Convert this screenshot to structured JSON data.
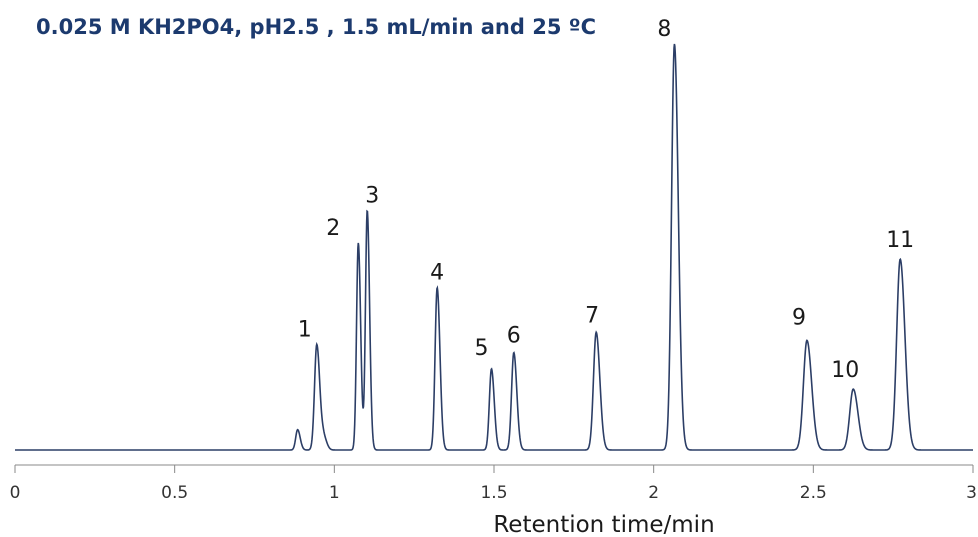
{
  "chart_data": {
    "type": "line",
    "title": "0.025 M KH2PO4, pH2.5 , 1.5 mL/min and 25 ºC",
    "xlabel": "Retention time/min",
    "ylabel": "",
    "xlim": [
      0,
      3
    ],
    "ylim": [
      0,
      100
    ],
    "x_ticks": [
      0,
      0.5,
      1,
      1.5,
      2,
      2.5,
      3
    ],
    "x_tick_labels": [
      "0",
      "0.5",
      "1",
      "1.5",
      "2",
      "2.5",
      "3"
    ],
    "grid": false,
    "legend": "none",
    "line_color": "#2c3e66",
    "title_color": "#1c3a6e",
    "series": [
      {
        "peaks": [
          {
            "label": "",
            "rt": 0.885,
            "height": 5,
            "width": 0.006
          },
          {
            "label": "1",
            "rt": 0.945,
            "height": 26,
            "width": 0.007
          },
          {
            "label": "",
            "rt": 0.967,
            "height": 3,
            "width": 0.007
          },
          {
            "label": "2",
            "rt": 1.075,
            "height": 51,
            "width": 0.0055
          },
          {
            "label": "3",
            "rt": 1.103,
            "height": 59,
            "width": 0.0055
          },
          {
            "label": "4",
            "rt": 1.322,
            "height": 40,
            "width": 0.0065
          },
          {
            "label": "5",
            "rt": 1.492,
            "height": 20,
            "width": 0.0065
          },
          {
            "label": "6",
            "rt": 1.562,
            "height": 24,
            "width": 0.007
          },
          {
            "label": "7",
            "rt": 1.82,
            "height": 29,
            "width": 0.0085
          },
          {
            "label": "8",
            "rt": 2.065,
            "height": 100,
            "width": 0.009
          },
          {
            "label": "9",
            "rt": 2.48,
            "height": 27,
            "width": 0.011
          },
          {
            "label": "10",
            "rt": 2.625,
            "height": 15,
            "width": 0.011
          },
          {
            "label": "11",
            "rt": 2.772,
            "height": 47,
            "width": 0.011
          }
        ]
      }
    ]
  }
}
